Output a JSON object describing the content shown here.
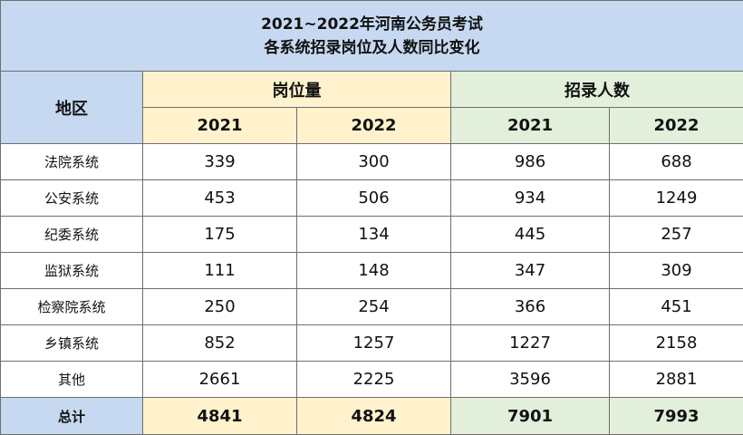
{
  "title": [
    "2021~2022年河南公务员考试",
    "各系统招录岗位及人数同比变化"
  ],
  "header": {
    "region": "地区",
    "groups": [
      {
        "label": "岗位量",
        "years": [
          "2021",
          "2022"
        ]
      },
      {
        "label": "招录人数",
        "years": [
          "2021",
          "2022"
        ]
      }
    ]
  },
  "rows": [
    [
      "法院系统",
      339,
      300,
      986,
      688
    ],
    [
      "公安系统",
      453,
      506,
      934,
      1249
    ],
    [
      "纪委系统",
      175,
      134,
      445,
      257
    ],
    [
      "监狱系统",
      111,
      148,
      347,
      309
    ],
    [
      "检察院系统",
      250,
      254,
      366,
      451
    ],
    [
      "乡镇系统",
      852,
      1257,
      1227,
      2158
    ],
    [
      "其他",
      2661,
      2225,
      3596,
      2881
    ]
  ],
  "total": [
    "总计",
    4841,
    4824,
    7901,
    7993
  ]
}
